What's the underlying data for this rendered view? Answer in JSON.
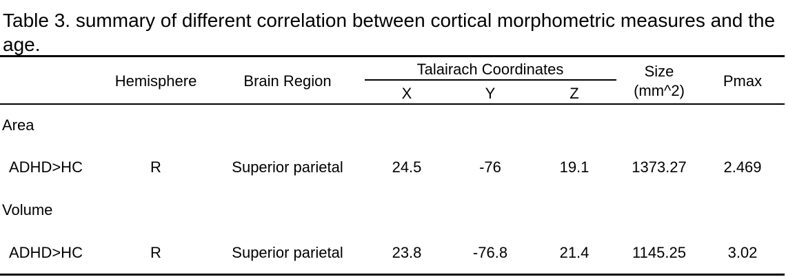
{
  "caption": "Table 3. summary of different correlation between cortical morphometric measures and the age.",
  "header": {
    "hemisphere": "Hemisphere",
    "brain_region": "Brain Region",
    "talairach_group": "Talairach Coordinates",
    "x": "X",
    "y": "Y",
    "z": "Z",
    "size_line1": "Size",
    "size_line2": "(mm^2)",
    "pmax": "Pmax"
  },
  "sections": [
    {
      "label": "Area",
      "row": {
        "contrast": "ADHD>HC",
        "hemisphere": "R",
        "region": "Superior parietal",
        "x": "24.5",
        "y": "-76",
        "z": "19.1",
        "size": "1373.27",
        "pmax": "2.469"
      }
    },
    {
      "label": "Volume",
      "row": {
        "contrast": "ADHD>HC",
        "hemisphere": "R",
        "region": "Superior parietal",
        "x": "23.8",
        "y": "-76.8",
        "z": "21.4",
        "size": "1145.25",
        "pmax": "3.02"
      }
    }
  ]
}
